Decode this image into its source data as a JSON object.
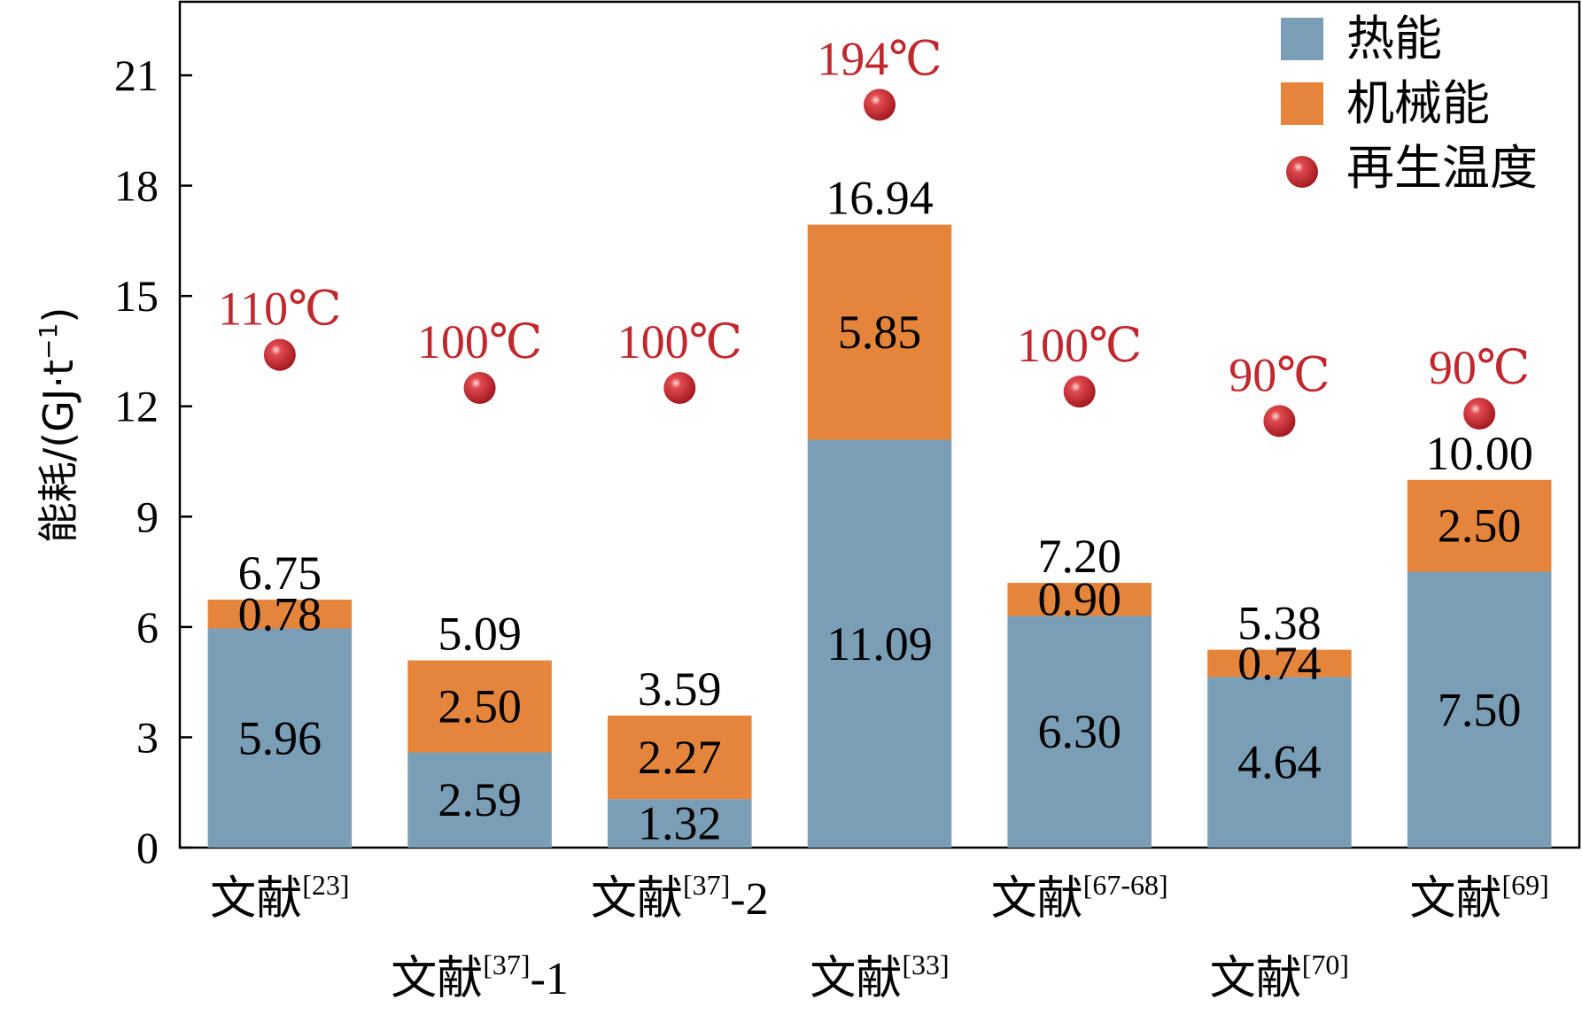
{
  "chart_data": {
    "type": "bar",
    "stacked": true,
    "ylabel": "能耗/(GJ·t",
    "ylabel_sup": "−1",
    "ylabel_close": ")",
    "ylim": [
      0,
      23
    ],
    "yticks": [
      0,
      3,
      6,
      9,
      12,
      15,
      18,
      21
    ],
    "categories": [
      {
        "base": "文献",
        "sup": "[23]",
        "suffix": "",
        "row": 1
      },
      {
        "base": "文献",
        "sup": "[37]",
        "suffix": "-1",
        "row": 2
      },
      {
        "base": "文献",
        "sup": "[37]",
        "suffix": "-2",
        "row": 1
      },
      {
        "base": "文献",
        "sup": "[33]",
        "suffix": "",
        "row": 2
      },
      {
        "base": "文献",
        "sup": "[67-68]",
        "suffix": "",
        "row": 1
      },
      {
        "base": "文献",
        "sup": "[70]",
        "suffix": "",
        "row": 2
      },
      {
        "base": "文献",
        "sup": "[69]",
        "suffix": "",
        "row": 1
      }
    ],
    "series": [
      {
        "name": "热能",
        "color": "#7a9eb5",
        "values": [
          5.96,
          2.59,
          1.32,
          11.09,
          6.3,
          4.64,
          7.5
        ],
        "labels": [
          "5.96",
          "2.59",
          "1.32",
          "11.09",
          "6.30",
          "4.64",
          "7.50"
        ]
      },
      {
        "name": "机械能",
        "color": "#e4853b",
        "values": [
          0.78,
          2.5,
          2.27,
          5.85,
          0.9,
          0.74,
          2.5
        ],
        "labels": [
          "0.78",
          "2.50",
          "2.27",
          "5.85",
          "0.90",
          "0.74",
          "2.50"
        ]
      }
    ],
    "totals": [
      "6.75",
      "5.09",
      "3.59",
      "16.94",
      "7.20",
      "5.38",
      "10.00"
    ],
    "temperature": {
      "name": "再生温度",
      "color": "#c0282e",
      "labels": [
        "110℃",
        "100℃",
        "100℃",
        "194℃",
        "100℃",
        "90℃",
        "90℃"
      ],
      "marker_y": [
        13.4,
        12.5,
        12.5,
        20.2,
        12.4,
        11.6,
        11.8
      ]
    },
    "legend_position": "top-right",
    "grid": false
  }
}
